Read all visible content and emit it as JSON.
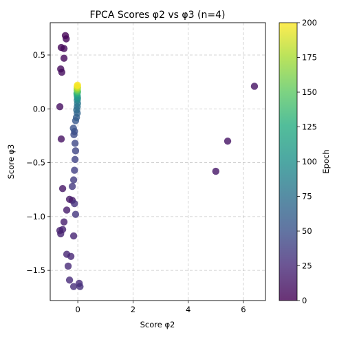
{
  "chart_data": {
    "type": "scatter",
    "title": "FPCA Scores φ2 vs φ3 (n=4)",
    "xlabel": "Score φ2",
    "ylabel": "Score φ3",
    "xlim": [
      -1.0,
      6.8
    ],
    "ylim": [
      -1.78,
      0.8
    ],
    "xticks": [
      0,
      2,
      4,
      6
    ],
    "xtick_labels": [
      "0",
      "2",
      "4",
      "6"
    ],
    "yticks": [
      0.5,
      0.0,
      -0.5,
      -1.0,
      -1.5
    ],
    "ytick_labels": [
      "0.5",
      "0.0",
      "−0.5",
      "−1.0",
      "−1.5"
    ],
    "grid": true,
    "colormap": "viridis",
    "marker_alpha": 0.8,
    "colorbar": {
      "label": "Epoch",
      "range": [
        0,
        200
      ],
      "ticks": [
        0,
        25,
        50,
        75,
        100,
        125,
        150,
        175,
        200
      ],
      "tick_labels": [
        "0",
        "25",
        "50",
        "75",
        "100",
        "125",
        "150",
        "175",
        "200"
      ]
    },
    "points": [
      {
        "x": -0.45,
        "y": 0.68,
        "epoch": 1
      },
      {
        "x": -0.42,
        "y": 0.65,
        "epoch": 2
      },
      {
        "x": -0.6,
        "y": 0.57,
        "epoch": 3
      },
      {
        "x": -0.5,
        "y": 0.56,
        "epoch": 4
      },
      {
        "x": -0.5,
        "y": 0.47,
        "epoch": 5
      },
      {
        "x": -0.62,
        "y": 0.37,
        "epoch": 6
      },
      {
        "x": -0.58,
        "y": 0.34,
        "epoch": 7
      },
      {
        "x": -0.65,
        "y": 0.02,
        "epoch": 8
      },
      {
        "x": -0.6,
        "y": -0.28,
        "epoch": 9
      },
      {
        "x": 6.4,
        "y": 0.21,
        "epoch": 10
      },
      {
        "x": 5.43,
        "y": -0.3,
        "epoch": 11
      },
      {
        "x": 5.0,
        "y": -0.58,
        "epoch": 12
      },
      {
        "x": -0.55,
        "y": -0.74,
        "epoch": 13
      },
      {
        "x": -0.3,
        "y": -0.84,
        "epoch": 14
      },
      {
        "x": -0.2,
        "y": -0.85,
        "epoch": 15
      },
      {
        "x": -0.4,
        "y": -0.94,
        "epoch": 16
      },
      {
        "x": -0.5,
        "y": -1.05,
        "epoch": 17
      },
      {
        "x": -0.65,
        "y": -1.13,
        "epoch": 18
      },
      {
        "x": -0.55,
        "y": -1.12,
        "epoch": 19
      },
      {
        "x": -0.62,
        "y": -1.16,
        "epoch": 20
      },
      {
        "x": -0.15,
        "y": -1.18,
        "epoch": 21
      },
      {
        "x": -0.4,
        "y": -1.35,
        "epoch": 22
      },
      {
        "x": -0.25,
        "y": -1.37,
        "epoch": 23
      },
      {
        "x": -0.35,
        "y": -1.46,
        "epoch": 24
      },
      {
        "x": -0.3,
        "y": -1.59,
        "epoch": 25
      },
      {
        "x": 0.05,
        "y": -1.62,
        "epoch": 26
      },
      {
        "x": -0.15,
        "y": -1.65,
        "epoch": 27
      },
      {
        "x": 0.08,
        "y": -1.65,
        "epoch": 28
      },
      {
        "x": -0.12,
        "y": -0.88,
        "epoch": 30
      },
      {
        "x": -0.08,
        "y": -0.98,
        "epoch": 32
      },
      {
        "x": -0.2,
        "y": -0.72,
        "epoch": 34
      },
      {
        "x": -0.15,
        "y": -0.66,
        "epoch": 36
      },
      {
        "x": -0.12,
        "y": -0.57,
        "epoch": 38
      },
      {
        "x": -0.1,
        "y": -0.47,
        "epoch": 40
      },
      {
        "x": -0.08,
        "y": -0.39,
        "epoch": 42
      },
      {
        "x": -0.1,
        "y": -0.32,
        "epoch": 44
      },
      {
        "x": -0.14,
        "y": -0.24,
        "epoch": 46
      },
      {
        "x": -0.12,
        "y": -0.21,
        "epoch": 48
      },
      {
        "x": -0.16,
        "y": -0.18,
        "epoch": 50
      },
      {
        "x": -0.08,
        "y": -0.11,
        "epoch": 55
      },
      {
        "x": -0.05,
        "y": -0.08,
        "epoch": 60
      },
      {
        "x": -0.02,
        "y": -0.04,
        "epoch": 65
      },
      {
        "x": -0.04,
        "y": -0.01,
        "epoch": 70
      },
      {
        "x": -0.02,
        "y": 0.02,
        "epoch": 75
      },
      {
        "x": -0.01,
        "y": 0.05,
        "epoch": 80
      },
      {
        "x": -0.02,
        "y": 0.08,
        "epoch": 90
      },
      {
        "x": -0.01,
        "y": 0.1,
        "epoch": 100
      },
      {
        "x": -0.02,
        "y": 0.12,
        "epoch": 110
      },
      {
        "x": -0.03,
        "y": 0.14,
        "epoch": 120
      },
      {
        "x": -0.02,
        "y": 0.15,
        "epoch": 130
      },
      {
        "x": -0.01,
        "y": 0.16,
        "epoch": 140
      },
      {
        "x": -0.02,
        "y": 0.17,
        "epoch": 150
      },
      {
        "x": -0.02,
        "y": 0.18,
        "epoch": 160
      },
      {
        "x": -0.02,
        "y": 0.19,
        "epoch": 170
      },
      {
        "x": -0.01,
        "y": 0.2,
        "epoch": 180
      },
      {
        "x": -0.02,
        "y": 0.21,
        "epoch": 190
      },
      {
        "x": -0.01,
        "y": 0.22,
        "epoch": 200
      }
    ]
  }
}
